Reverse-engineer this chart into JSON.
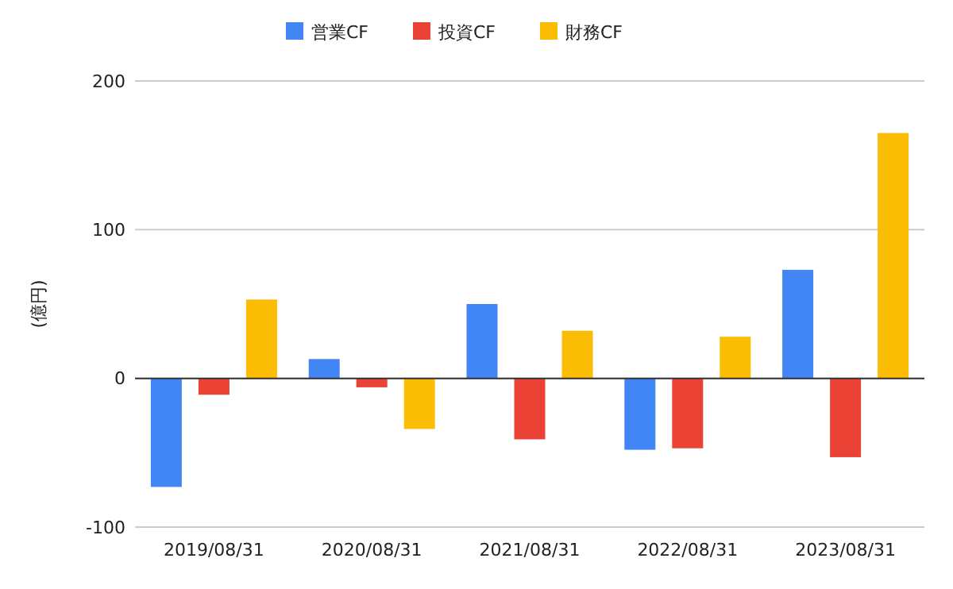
{
  "chart_data": {
    "type": "bar",
    "ylabel": "(億円)",
    "categories": [
      "2019/08/31",
      "2020/08/31",
      "2021/08/31",
      "2022/08/31",
      "2023/08/31"
    ],
    "series": [
      {
        "name": "営業CF",
        "color": "#4285f4",
        "values": [
          -73,
          13,
          50,
          -48,
          73
        ]
      },
      {
        "name": "投資CF",
        "color": "#ea4335",
        "values": [
          -11,
          -6,
          -41,
          -47,
          -53
        ]
      },
      {
        "name": "財務CF",
        "color": "#fbbc04",
        "values": [
          53,
          -34,
          32,
          28,
          165
        ]
      }
    ],
    "ylim": [
      -100,
      200
    ],
    "yticks": [
      -100,
      0,
      100,
      200
    ],
    "grid": "y",
    "legend": "top"
  }
}
